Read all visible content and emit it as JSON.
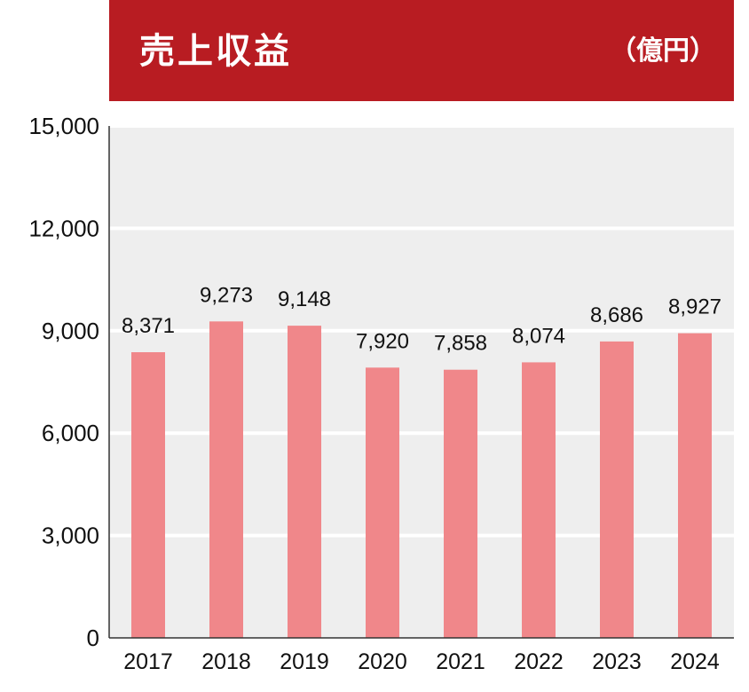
{
  "header": {
    "title": "売上収益",
    "unit": "（億円）"
  },
  "colors": {
    "header_bg": "#b81c22",
    "bar": "#f0878a",
    "plot_bg": "#eeeeee",
    "gridline": "#ffffff"
  },
  "chart_data": {
    "type": "bar",
    "title": "売上収益",
    "unit": "（億円）",
    "categories": [
      "2017",
      "2018",
      "2019",
      "2020",
      "2021",
      "2022",
      "2023",
      "2024"
    ],
    "values": [
      8371,
      9273,
      9148,
      7920,
      7858,
      8074,
      8686,
      8927
    ],
    "value_labels": [
      "8,371",
      "9,273",
      "9,148",
      "7,920",
      "7,858",
      "8,074",
      "8,686",
      "8,927"
    ],
    "ylim": [
      0,
      15000
    ],
    "yticks": [
      0,
      3000,
      6000,
      9000,
      12000,
      15000
    ],
    "ytick_labels": [
      "0",
      "3,000",
      "6,000",
      "9,000",
      "12,000",
      "15,000"
    ],
    "grid": true,
    "xlabel": "",
    "ylabel": ""
  }
}
